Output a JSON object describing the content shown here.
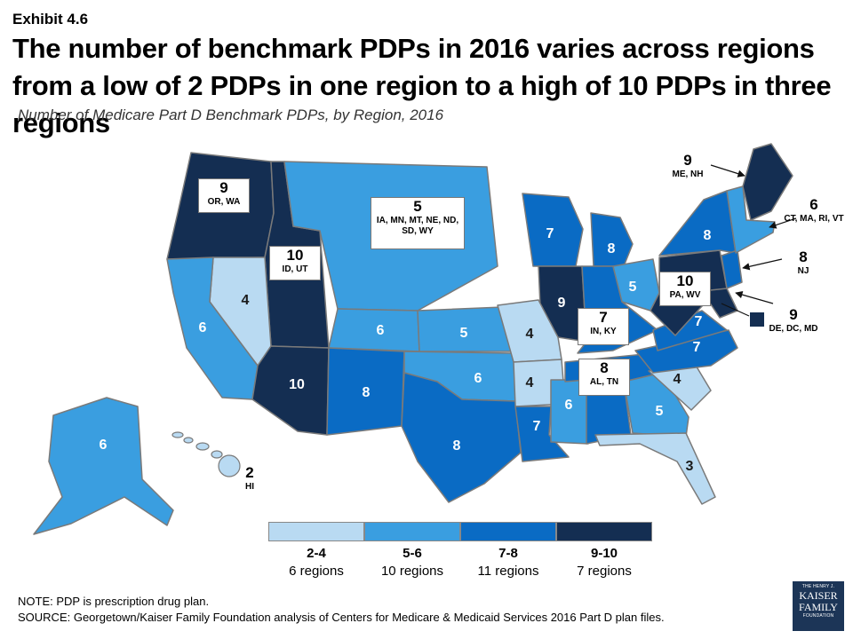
{
  "header": {
    "exhibit": "Exhibit 4.6",
    "title": "The number of benchmark PDPs in 2016 varies across regions from a low of 2 PDPs in one region to a high of 10 PDPs in three regions",
    "subtitle": "Number of Medicare Part D Benchmark PDPs, by Region, 2016"
  },
  "colors": {
    "c1": "#b9daf2",
    "c2": "#3a9ee0",
    "c3": "#0a6bc4",
    "c4": "#142e52",
    "border": "#7a7a7a"
  },
  "regions": [
    {
      "states": "ME, NH",
      "count": "9",
      "bin": "9-10"
    },
    {
      "states": "CT, MA, RI, VT",
      "count": "6",
      "bin": "5-6"
    },
    {
      "states": "NY",
      "count": "8",
      "bin": "7-8"
    },
    {
      "states": "NJ",
      "count": "8",
      "bin": "7-8"
    },
    {
      "states": "DE, DC, MD",
      "count": "9",
      "bin": "9-10"
    },
    {
      "states": "PA, WV",
      "count": "10",
      "bin": "9-10"
    },
    {
      "states": "VA",
      "count": "7",
      "bin": "7-8"
    },
    {
      "states": "NC",
      "count": "7",
      "bin": "7-8"
    },
    {
      "states": "SC",
      "count": "4",
      "bin": "2-4"
    },
    {
      "states": "GA",
      "count": "5",
      "bin": "5-6"
    },
    {
      "states": "FL",
      "count": "3",
      "bin": "2-4"
    },
    {
      "states": "AL, TN",
      "count": "8",
      "bin": "7-8"
    },
    {
      "states": "MI",
      "count": "8",
      "bin": "7-8"
    },
    {
      "states": "OH",
      "count": "5",
      "bin": "5-6"
    },
    {
      "states": "IN, KY",
      "count": "7",
      "bin": "7-8"
    },
    {
      "states": "WI",
      "count": "7",
      "bin": "7-8"
    },
    {
      "states": "IL",
      "count": "9",
      "bin": "9-10"
    },
    {
      "states": "MO",
      "count": "4",
      "bin": "2-4"
    },
    {
      "states": "AR",
      "count": "4",
      "bin": "2-4"
    },
    {
      "states": "MS",
      "count": "6",
      "bin": "5-6"
    },
    {
      "states": "LA",
      "count": "7",
      "bin": "7-8"
    },
    {
      "states": "TX",
      "count": "8",
      "bin": "7-8"
    },
    {
      "states": "OK",
      "count": "6",
      "bin": "5-6"
    },
    {
      "states": "KS",
      "count": "5",
      "bin": "5-6"
    },
    {
      "states": "IA, MN, MT, NE, ND, SD, WY",
      "count": "5",
      "bin": "5-6"
    },
    {
      "states": "CO",
      "count": "6",
      "bin": "5-6"
    },
    {
      "states": "NM",
      "count": "8",
      "bin": "7-8"
    },
    {
      "states": "AZ",
      "count": "10",
      "bin": "9-10"
    },
    {
      "states": "ID, UT",
      "count": "10",
      "bin": "9-10"
    },
    {
      "states": "NV",
      "count": "4",
      "bin": "2-4"
    },
    {
      "states": "CA",
      "count": "6",
      "bin": "5-6"
    },
    {
      "states": "OR, WA",
      "count": "9",
      "bin": "9-10"
    },
    {
      "states": "AK",
      "count": "6",
      "bin": "5-6"
    },
    {
      "states": "HI",
      "count": "2",
      "bin": "2-4"
    }
  ],
  "legend": [
    {
      "range": "2-4",
      "count": "6 regions",
      "color": "#b9daf2"
    },
    {
      "range": "5-6",
      "count": "10 regions",
      "color": "#3a9ee0"
    },
    {
      "range": "7-8",
      "count": "11 regions",
      "color": "#0a6bc4"
    },
    {
      "range": "9-10",
      "count": "7 regions",
      "color": "#142e52"
    }
  ],
  "footer": {
    "note": "NOTE: PDP is prescription drug plan.",
    "source": "SOURCE: Georgetown/Kaiser Family Foundation analysis of Centers for Medicare & Medicaid Services 2016 Part D plan files."
  },
  "logo": {
    "line1": "THE HENRY J.",
    "line2": "KAISER",
    "line3": "FAMILY",
    "line4": "FOUNDATION"
  }
}
